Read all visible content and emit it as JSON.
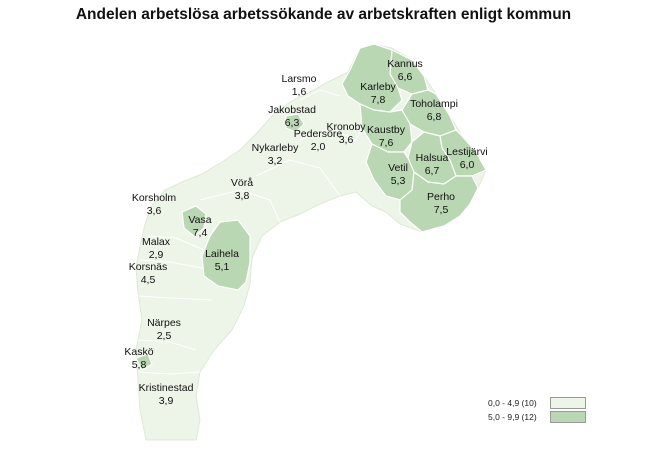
{
  "title": "Andelen arbetslösa arbetssökande av arbetskraften enligt kommun",
  "colors": {
    "low": "#edf4e8",
    "high": "#b9d7b2",
    "border": "#ffffff",
    "outline": "#dfe9d8"
  },
  "legend": [
    {
      "label": "0,0 - 4,9 (10)",
      "class": "low"
    },
    {
      "label": "5,0 - 9,9 (12)",
      "class": "high"
    }
  ],
  "municipalities": [
    {
      "name": "Larsmo",
      "value": "1,6",
      "class": "low"
    },
    {
      "name": "Kannus",
      "value": "6,6",
      "class": "high"
    },
    {
      "name": "Karleby",
      "value": "7,8",
      "class": "high"
    },
    {
      "name": "Toholampi",
      "value": "6,8",
      "class": "high"
    },
    {
      "name": "Jakobstad",
      "value": "6,3",
      "class": "high"
    },
    {
      "name": "Kronoby",
      "value": "3,6",
      "class": "low"
    },
    {
      "name": "Pedersöre",
      "value": "2,0",
      "class": "low"
    },
    {
      "name": "Kaustby",
      "value": "7,6",
      "class": "high"
    },
    {
      "name": "Lestijärvi",
      "value": "6,0",
      "class": "high"
    },
    {
      "name": "Nykarleby",
      "value": "3,2",
      "class": "low"
    },
    {
      "name": "Halsua",
      "value": "6,7",
      "class": "high"
    },
    {
      "name": "Vetil",
      "value": "5,3",
      "class": "high"
    },
    {
      "name": "Vörå",
      "value": "3,8",
      "class": "low"
    },
    {
      "name": "Perho",
      "value": "7,5",
      "class": "high"
    },
    {
      "name": "Korsholm",
      "value": "3,6",
      "class": "low"
    },
    {
      "name": "Vasa",
      "value": "7,4",
      "class": "high"
    },
    {
      "name": "Malax",
      "value": "2,9",
      "class": "low"
    },
    {
      "name": "Laihela",
      "value": "5,1",
      "class": "high"
    },
    {
      "name": "Korsnäs",
      "value": "4,5",
      "class": "low"
    },
    {
      "name": "Närpes",
      "value": "2,5",
      "class": "low"
    },
    {
      "name": "Kaskö",
      "value": "5,8",
      "class": "high"
    },
    {
      "name": "Kristinestad",
      "value": "3,9",
      "class": "low"
    }
  ]
}
